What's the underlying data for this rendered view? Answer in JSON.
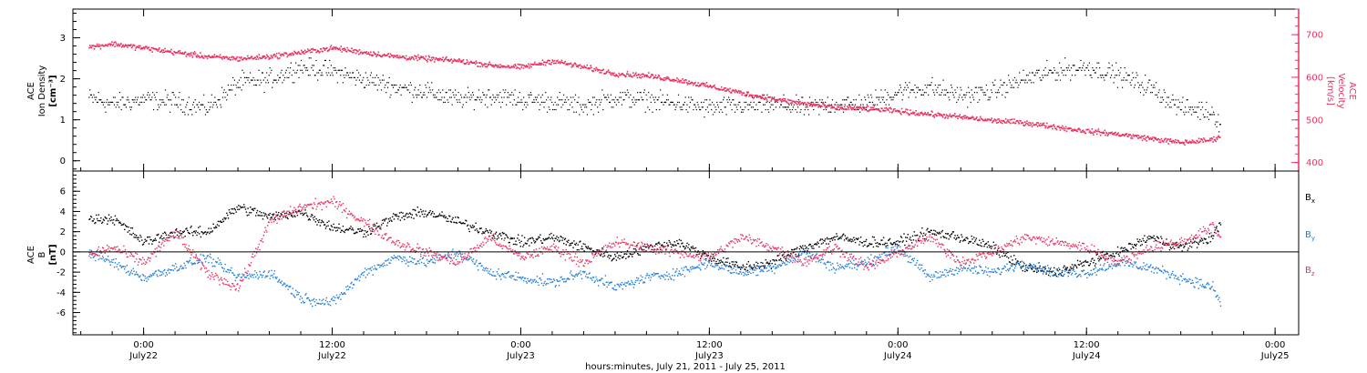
{
  "colors": {
    "density": "#000000",
    "velocity": "#e8315f",
    "bx": "#000000",
    "by": "#1f7ed8",
    "bz": "#e8315f",
    "axis": "#000000"
  },
  "chart_data": [
    {
      "type": "scatter",
      "panel": "plasma",
      "left_axis": {
        "label_lines": [
          "ACE",
          "Ion Density",
          "[cm⁻³]"
        ],
        "ylim": [
          -0.25,
          3.7
        ],
        "ticks": [
          0,
          1,
          2,
          3
        ],
        "tick_labels": [
          "0",
          "1",
          "2",
          "3"
        ]
      },
      "right_axis": {
        "label_lines": [
          "ACE",
          "Velocity",
          "[km/s]"
        ],
        "ylim": [
          380,
          760
        ],
        "ticks": [
          400,
          500,
          600,
          700
        ],
        "tick_labels": [
          "400",
          "500",
          "600",
          "700"
        ]
      },
      "series": [
        {
          "name": "Ion Density",
          "axis": "left",
          "x_hours": [
            -4,
            -2,
            0,
            2,
            4,
            6,
            8,
            10,
            12,
            14,
            16,
            18,
            20,
            22,
            24,
            26,
            28,
            30,
            32,
            34,
            36,
            38,
            40,
            42,
            44,
            46,
            48,
            50,
            52,
            54,
            56,
            58,
            60,
            62,
            64,
            66,
            68,
            68.5
          ],
          "y": [
            1.6,
            1.4,
            1.5,
            1.45,
            1.3,
            1.9,
            2.0,
            2.3,
            2.2,
            2.0,
            1.8,
            1.7,
            1.5,
            1.6,
            1.5,
            1.45,
            1.35,
            1.55,
            1.5,
            1.4,
            1.3,
            1.35,
            1.4,
            1.3,
            1.4,
            1.4,
            1.7,
            1.8,
            1.6,
            1.7,
            2.0,
            2.2,
            2.3,
            2.1,
            1.8,
            1.3,
            1.2,
            0.9
          ]
        },
        {
          "name": "Velocity",
          "axis": "right",
          "x_hours": [
            -4,
            -2,
            0,
            2,
            4,
            6,
            8,
            10,
            12,
            14,
            16,
            18,
            20,
            22,
            24,
            26,
            28,
            30,
            32,
            34,
            36,
            38,
            40,
            42,
            44,
            46,
            48,
            50,
            52,
            54,
            56,
            58,
            60,
            62,
            64,
            66,
            68,
            68.5
          ],
          "y": [
            670,
            680,
            670,
            660,
            650,
            645,
            650,
            660,
            670,
            660,
            650,
            645,
            640,
            630,
            625,
            640,
            625,
            610,
            605,
            595,
            580,
            565,
            550,
            540,
            530,
            528,
            522,
            515,
            508,
            500,
            495,
            485,
            475,
            468,
            458,
            448,
            455,
            465
          ]
        }
      ]
    },
    {
      "type": "scatter",
      "panel": "magnetic field",
      "left_axis": {
        "label_lines": [
          "ACE",
          "B",
          "[nT]"
        ],
        "ylim": [
          -8.2,
          8.0
        ],
        "ticks": [
          -6,
          -4,
          -2,
          0,
          2,
          4,
          6
        ],
        "tick_labels": [
          "-6",
          "-4",
          "-2",
          "0",
          "2",
          "4",
          "6"
        ]
      },
      "legend": {
        "placement": "right",
        "entries": [
          {
            "base": "B",
            "sub": "x"
          },
          {
            "base": "B",
            "sub": "y"
          },
          {
            "base": "B",
            "sub": "z"
          }
        ]
      },
      "series": [
        {
          "name": "Bx",
          "x_hours": [
            -4,
            -2,
            0,
            2,
            4,
            6,
            8,
            10,
            12,
            14,
            16,
            18,
            20,
            22,
            24,
            26,
            28,
            30,
            32,
            34,
            36,
            38,
            40,
            42,
            44,
            46,
            48,
            50,
            52,
            54,
            56,
            58,
            60,
            62,
            64,
            66,
            68,
            68.5
          ],
          "y": [
            3.2,
            3.4,
            1.0,
            2.0,
            2.0,
            4.5,
            3.5,
            4.0,
            2.5,
            2.0,
            3.5,
            4.0,
            3.0,
            2.0,
            1.0,
            1.5,
            0.5,
            -0.5,
            0.5,
            1.0,
            -0.5,
            -1.5,
            -1.0,
            0.5,
            1.5,
            1.0,
            1.0,
            2.0,
            1.5,
            0.5,
            -1.5,
            -2.0,
            -1.0,
            0.0,
            1.5,
            0.5,
            1.5,
            3.0
          ]
        },
        {
          "name": "By",
          "x_hours": [
            -4,
            -2,
            0,
            2,
            4,
            6,
            8,
            10,
            12,
            14,
            16,
            18,
            20,
            22,
            24,
            26,
            28,
            30,
            32,
            34,
            36,
            38,
            40,
            42,
            44,
            46,
            48,
            50,
            52,
            54,
            56,
            58,
            60,
            62,
            64,
            66,
            68,
            68.5
          ],
          "y": [
            0.3,
            -1.0,
            -2.5,
            -1.5,
            -0.5,
            -2.5,
            -2.0,
            -4.5,
            -5.0,
            -2.0,
            -0.5,
            -1.0,
            0.0,
            -2.0,
            -2.5,
            -3.0,
            -2.0,
            -3.5,
            -2.5,
            -2.0,
            -1.0,
            -2.0,
            -1.5,
            0.0,
            -1.5,
            -1.0,
            0.5,
            -2.5,
            -1.5,
            -2.0,
            -1.0,
            -2.0,
            -2.0,
            -1.0,
            -1.5,
            -2.5,
            -3.5,
            -5.0
          ]
        },
        {
          "name": "Bz",
          "x_hours": [
            -4,
            -2,
            0,
            2,
            4,
            6,
            8,
            10,
            12,
            14,
            16,
            18,
            20,
            22,
            24,
            26,
            28,
            30,
            32,
            34,
            36,
            38,
            40,
            42,
            44,
            46,
            48,
            50,
            52,
            54,
            56,
            58,
            60,
            62,
            64,
            66,
            68,
            68.5
          ],
          "y": [
            -0.5,
            0.5,
            -1.0,
            2.0,
            -2.0,
            -3.5,
            3.0,
            4.5,
            5.0,
            3.0,
            1.0,
            0.0,
            -1.0,
            1.5,
            -0.5,
            0.5,
            -1.0,
            1.0,
            0.5,
            0.0,
            -0.5,
            1.5,
            0.5,
            -1.0,
            0.5,
            -1.5,
            0.0,
            1.5,
            -1.0,
            0.0,
            1.5,
            1.0,
            0.5,
            -1.0,
            0.5,
            1.0,
            2.5,
            1.5
          ]
        }
      ]
    }
  ],
  "x_axis": {
    "range_hours": [
      -4.5,
      73.5
    ],
    "ticks": [
      {
        "hours": 0,
        "time": "0:00",
        "date": "July22"
      },
      {
        "hours": 12,
        "time": "12:00",
        "date": "July22"
      },
      {
        "hours": 24,
        "time": "0:00",
        "date": "July23"
      },
      {
        "hours": 36,
        "time": "12:00",
        "date": "July23"
      },
      {
        "hours": 48,
        "time": "0:00",
        "date": "July24"
      },
      {
        "hours": 60,
        "time": "12:00",
        "date": "July24"
      },
      {
        "hours": 72,
        "time": "0:00",
        "date": "July25"
      }
    ],
    "label": "hours:minutes, July 21, 2011 - July 25, 2011"
  }
}
